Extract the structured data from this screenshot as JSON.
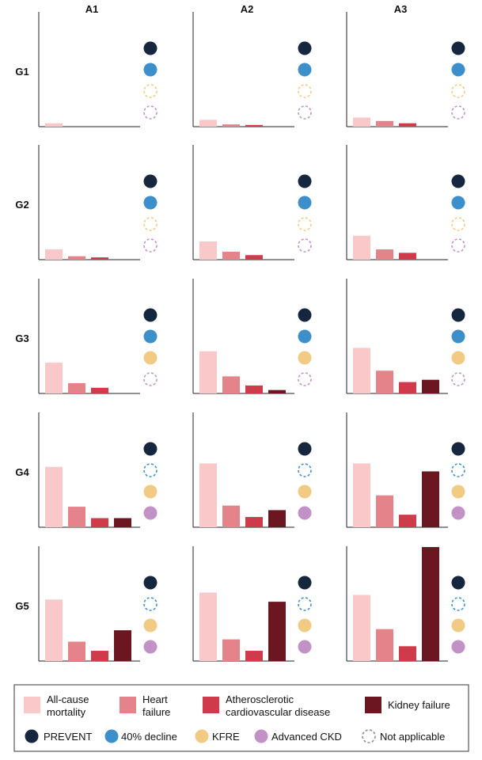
{
  "chart_data": {
    "type": "bar",
    "title": "",
    "columns": [
      "A1",
      "A2",
      "A3"
    ],
    "rows": [
      "G1",
      "G2",
      "G3",
      "G4",
      "G5"
    ],
    "outcomes": [
      "All-cause mortality",
      "Heart failure",
      "Atherosclerotic cardiovascular disease",
      "Kidney failure"
    ],
    "outcome_colors": [
      "#f9c8c8",
      "#e4838a",
      "#cf3b4a",
      "#6b1620"
    ],
    "ylim": [
      0,
      1
    ],
    "panels": [
      [
        {
          "values": [
            0.03,
            0,
            0,
            0
          ],
          "tools": [
            "filled",
            "filled",
            "na",
            "na"
          ]
        },
        {
          "values": [
            0.06,
            0.02,
            0.015,
            0
          ],
          "tools": [
            "filled",
            "filled",
            "na",
            "na"
          ]
        },
        {
          "values": [
            0.08,
            0.05,
            0.03,
            0
          ],
          "tools": [
            "filled",
            "filled",
            "na",
            "na"
          ]
        }
      ],
      [
        {
          "values": [
            0.09,
            0.03,
            0.02,
            0
          ],
          "tools": [
            "filled",
            "filled",
            "na",
            "na"
          ]
        },
        {
          "values": [
            0.16,
            0.07,
            0.04,
            0
          ],
          "tools": [
            "filled",
            "filled",
            "na",
            "na"
          ]
        },
        {
          "values": [
            0.21,
            0.09,
            0.06,
            0
          ],
          "tools": [
            "filled",
            "filled",
            "na",
            "na"
          ]
        }
      ],
      [
        {
          "values": [
            0.27,
            0.09,
            0.05,
            0
          ],
          "tools": [
            "filled",
            "filled",
            "filled",
            "na"
          ]
        },
        {
          "values": [
            0.37,
            0.15,
            0.07,
            0.03
          ],
          "tools": [
            "filled",
            "filled",
            "filled",
            "na"
          ]
        },
        {
          "values": [
            0.4,
            0.2,
            0.1,
            0.12
          ],
          "tools": [
            "filled",
            "filled",
            "filled",
            "na"
          ]
        }
      ],
      [
        {
          "values": [
            0.53,
            0.18,
            0.08,
            0.08
          ],
          "tools": [
            "filled",
            "na",
            "filled",
            "filled"
          ]
        },
        {
          "values": [
            0.56,
            0.19,
            0.09,
            0.15
          ],
          "tools": [
            "filled",
            "na",
            "filled",
            "filled"
          ]
        },
        {
          "values": [
            0.56,
            0.28,
            0.11,
            0.49
          ],
          "tools": [
            "filled",
            "na",
            "filled",
            "filled"
          ]
        }
      ],
      [
        {
          "values": [
            0.54,
            0.17,
            0.09,
            0.27
          ],
          "tools": [
            "filled",
            "na",
            "filled",
            "filled"
          ]
        },
        {
          "values": [
            0.6,
            0.19,
            0.09,
            0.52
          ],
          "tools": [
            "filled",
            "na",
            "filled",
            "filled"
          ]
        },
        {
          "values": [
            0.58,
            0.28,
            0.13,
            1.0
          ],
          "tools": [
            "filled",
            "na",
            "filled",
            "filled"
          ]
        }
      ]
    ],
    "legend": {
      "bars": [
        {
          "label_lines": [
            "All-cause",
            "mortality"
          ],
          "color": "#f9c8c8"
        },
        {
          "label_lines": [
            "Heart",
            "failure"
          ],
          "color": "#e4838a"
        },
        {
          "label_lines": [
            "Atherosclerotic",
            "cardiovascular disease"
          ],
          "color": "#cf3b4a"
        },
        {
          "label_lines": [
            "Kidney failure"
          ],
          "color": "#6b1620"
        }
      ],
      "tools": [
        {
          "label": "PREVENT",
          "color": "#16263f",
          "style": "filled"
        },
        {
          "label": "40% decline",
          "color": "#3d8fc9",
          "style": "filled"
        },
        {
          "label": "KFRE",
          "color": "#f1cb84",
          "style": "filled"
        },
        {
          "label": "Advanced CKD",
          "color": "#c292c6",
          "style": "filled"
        },
        {
          "label": "Not applicable",
          "color": "#8a8a8a",
          "style": "dashed"
        }
      ]
    }
  }
}
